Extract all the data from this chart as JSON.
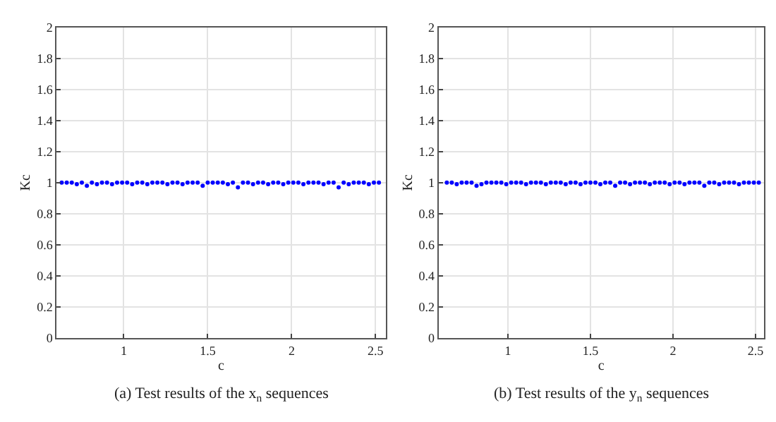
{
  "chart_data": [
    {
      "type": "scatter",
      "title": "(a) Test results of the x$_{n}$ sequences",
      "xlabel": "c",
      "ylabel": "Kc",
      "x": [
        0.63,
        0.66,
        0.69,
        0.72,
        0.75,
        0.78,
        0.81,
        0.84,
        0.87,
        0.9,
        0.93,
        0.96,
        0.99,
        1.02,
        1.05,
        1.08,
        1.11,
        1.14,
        1.17,
        1.2,
        1.23,
        1.26,
        1.29,
        1.32,
        1.35,
        1.38,
        1.41,
        1.44,
        1.47,
        1.5,
        1.53,
        1.56,
        1.59,
        1.62,
        1.65,
        1.68,
        1.71,
        1.74,
        1.77,
        1.8,
        1.83,
        1.86,
        1.89,
        1.92,
        1.95,
        1.98,
        2.01,
        2.04,
        2.07,
        2.1,
        2.13,
        2.16,
        2.19,
        2.22,
        2.25,
        2.28,
        2.31,
        2.34,
        2.37,
        2.4,
        2.43,
        2.46,
        2.49,
        2.52
      ],
      "series": [
        {
          "color": "#0000ff",
          "values": [
            1,
            1,
            1,
            0.99,
            1,
            0.98,
            1,
            0.99,
            1,
            1,
            0.99,
            1,
            1,
            1,
            0.99,
            1,
            1,
            0.99,
            1,
            1,
            1,
            0.99,
            1,
            1,
            0.99,
            1,
            1,
            1,
            0.98,
            1,
            1,
            1,
            1,
            0.99,
            1,
            0.97,
            1,
            1,
            0.99,
            1,
            1,
            0.99,
            1,
            1,
            0.99,
            1,
            1,
            1,
            0.99,
            1,
            1,
            1,
            0.99,
            1,
            1,
            0.97,
            1,
            0.99,
            1,
            1,
            1,
            0.99,
            1,
            1
          ]
        }
      ],
      "xlim": [
        0.6,
        2.56
      ],
      "xticks": [
        1,
        1.5,
        2,
        2.5
      ],
      "ylim": [
        0,
        2
      ],
      "yticks": [
        0,
        0.2,
        0.4,
        0.6,
        0.8,
        1,
        1.2,
        1.4,
        1.6,
        1.8,
        2
      ],
      "grid": true,
      "marker": "circle"
    },
    {
      "type": "scatter",
      "title": "(b) Test results of the y$_{n}$ sequences",
      "xlabel": "c",
      "ylabel": "Kc",
      "x": [
        0.63,
        0.66,
        0.69,
        0.72,
        0.75,
        0.78,
        0.81,
        0.84,
        0.87,
        0.9,
        0.93,
        0.96,
        0.99,
        1.02,
        1.05,
        1.08,
        1.11,
        1.14,
        1.17,
        1.2,
        1.23,
        1.26,
        1.29,
        1.32,
        1.35,
        1.38,
        1.41,
        1.44,
        1.47,
        1.5,
        1.53,
        1.56,
        1.59,
        1.62,
        1.65,
        1.68,
        1.71,
        1.74,
        1.77,
        1.8,
        1.83,
        1.86,
        1.89,
        1.92,
        1.95,
        1.98,
        2.01,
        2.04,
        2.07,
        2.1,
        2.13,
        2.16,
        2.19,
        2.22,
        2.25,
        2.28,
        2.31,
        2.34,
        2.37,
        2.4,
        2.43,
        2.46,
        2.49,
        2.52
      ],
      "series": [
        {
          "color": "#0000ff",
          "values": [
            1,
            1,
            0.99,
            1,
            1,
            1,
            0.98,
            0.99,
            1,
            1,
            1,
            1,
            0.99,
            1,
            1,
            1,
            0.99,
            1,
            1,
            1,
            0.99,
            1,
            1,
            1,
            0.99,
            1,
            1,
            0.99,
            1,
            1,
            1,
            0.99,
            1,
            1,
            0.98,
            1,
            1,
            0.99,
            1,
            1,
            1,
            0.99,
            1,
            1,
            1,
            0.99,
            1,
            1,
            0.99,
            1,
            1,
            1,
            0.98,
            1,
            1,
            0.99,
            1,
            1,
            1,
            0.99,
            1,
            1,
            1,
            1
          ]
        }
      ],
      "xlim": [
        0.58,
        2.55
      ],
      "xticks": [
        1,
        1.5,
        2,
        2.5
      ],
      "ylim": [
        0,
        2
      ],
      "yticks": [
        0,
        0.2,
        0.4,
        0.6,
        0.8,
        1,
        1.2,
        1.4,
        1.6,
        1.8,
        2
      ],
      "grid": true,
      "marker": "circle"
    }
  ]
}
